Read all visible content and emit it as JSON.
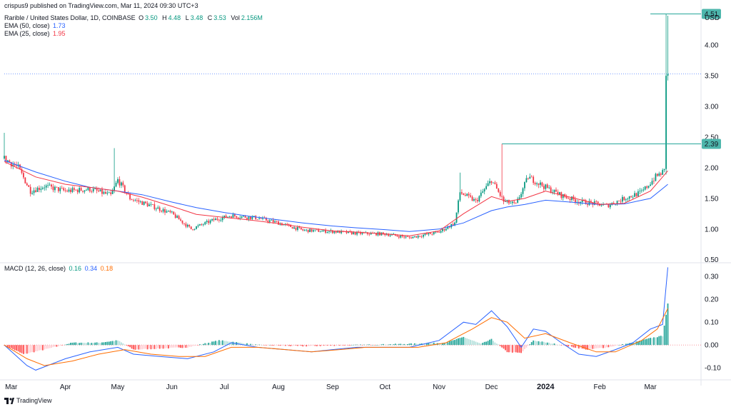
{
  "publisher_line": "crispus9 published on TradingView.com, Mar 11, 2024 09:30 UTC+3",
  "symbol_line": {
    "name": "Rarible / United States Dollar, 1D, COINBASE",
    "o_label": "O",
    "o": "3.50",
    "h_label": "H",
    "h": "4.48",
    "l_label": "L",
    "l": "3.48",
    "c_label": "C",
    "c": "3.53",
    "v_label": "Vol",
    "v": "2.156M"
  },
  "indicators": [
    {
      "label": "EMA (50, close)",
      "value": "1.73",
      "color": "#2962ff"
    },
    {
      "label": "EMA (25, close)",
      "value": "1.95",
      "color": "#f23645"
    }
  ],
  "macd_label": "MACD (12, 26, close)",
  "macd_values": [
    "0.16",
    "0.34",
    "0.18"
  ],
  "macd_value_colors": [
    "#089981",
    "#2962ff",
    "#ff6d00"
  ],
  "currency": "USD",
  "footer_brand": "TradingView",
  "colors": {
    "up": "#089981",
    "down": "#f23645",
    "ema50": "#2962ff",
    "ema25": "#f23645",
    "macd_line": "#2962ff",
    "signal_line": "#ff6d00",
    "level_line": "#26a69a",
    "badge": "#4db6ac"
  },
  "chart_data": [
    {
      "type": "candlestick",
      "title": "Rarible / United States Dollar, 1D, COINBASE",
      "ylabel": "USD",
      "ylim": [
        0.45,
        4.62
      ],
      "yticks": [
        "0.50",
        "1.00",
        "1.50",
        "2.00",
        "2.50",
        "3.00",
        "3.50",
        "4.00"
      ],
      "x_ticks": [
        "Mar",
        "Apr",
        "May",
        "Jun",
        "Jul",
        "Aug",
        "Sep",
        "Oct",
        "Nov",
        "Dec",
        "2024",
        "Feb",
        "Mar"
      ],
      "x_tick_dates": [
        "2023-03-01",
        "2023-04-01",
        "2023-05-01",
        "2023-06-01",
        "2023-07-01",
        "2023-08-01",
        "2023-09-01",
        "2023-10-01",
        "2023-11-01",
        "2023-12-01",
        "2024-01-01",
        "2024-02-01",
        "2024-03-01"
      ],
      "x_range": [
        "2023-02-25",
        "2024-03-30"
      ],
      "price_levels": [
        {
          "label": "4.51",
          "value": 4.51,
          "start_date": "2024-03-01"
        },
        {
          "label": "2.39",
          "value": 2.39,
          "start_date": "2023-12-07"
        }
      ],
      "current_price_line": 3.53,
      "series": [
        {
          "name": "EMA (50, close)",
          "date_values": [
            [
              "2023-02-25",
              2.12
            ],
            [
              "2023-03-15",
              1.93
            ],
            [
              "2023-04-01",
              1.78
            ],
            [
              "2023-04-15",
              1.68
            ],
            [
              "2023-05-01",
              1.62
            ],
            [
              "2023-05-15",
              1.56
            ],
            [
              "2023-06-01",
              1.44
            ],
            [
              "2023-06-15",
              1.35
            ],
            [
              "2023-07-01",
              1.27
            ],
            [
              "2023-07-15",
              1.21
            ],
            [
              "2023-08-01",
              1.15
            ],
            [
              "2023-08-15",
              1.1
            ],
            [
              "2023-09-01",
              1.05
            ],
            [
              "2023-09-15",
              1.02
            ],
            [
              "2023-10-01",
              0.99
            ],
            [
              "2023-10-15",
              0.96
            ],
            [
              "2023-11-01",
              1.0
            ],
            [
              "2023-11-15",
              1.1
            ],
            [
              "2023-12-01",
              1.3
            ],
            [
              "2023-12-10",
              1.36
            ],
            [
              "2023-12-20",
              1.4
            ],
            [
              "2024-01-01",
              1.47
            ],
            [
              "2024-01-15",
              1.44
            ],
            [
              "2024-02-01",
              1.4
            ],
            [
              "2024-02-15",
              1.41
            ],
            [
              "2024-03-01",
              1.5
            ],
            [
              "2024-03-08",
              1.66
            ],
            [
              "2024-03-11",
              1.73
            ]
          ]
        },
        {
          "name": "EMA (25, close)",
          "date_values": [
            [
              "2023-02-25",
              2.1
            ],
            [
              "2023-03-15",
              1.85
            ],
            [
              "2023-04-01",
              1.73
            ],
            [
              "2023-04-15",
              1.68
            ],
            [
              "2023-05-01",
              1.62
            ],
            [
              "2023-05-15",
              1.52
            ],
            [
              "2023-06-01",
              1.37
            ],
            [
              "2023-06-15",
              1.24
            ],
            [
              "2023-07-01",
              1.19
            ],
            [
              "2023-07-15",
              1.15
            ],
            [
              "2023-08-01",
              1.09
            ],
            [
              "2023-08-15",
              1.03
            ],
            [
              "2023-09-01",
              0.97
            ],
            [
              "2023-09-15",
              0.95
            ],
            [
              "2023-10-01",
              0.92
            ],
            [
              "2023-10-15",
              0.89
            ],
            [
              "2023-11-01",
              0.97
            ],
            [
              "2023-11-15",
              1.25
            ],
            [
              "2023-12-01",
              1.53
            ],
            [
              "2023-12-10",
              1.45
            ],
            [
              "2023-12-20",
              1.5
            ],
            [
              "2024-01-01",
              1.62
            ],
            [
              "2024-01-15",
              1.52
            ],
            [
              "2024-02-01",
              1.4
            ],
            [
              "2024-02-15",
              1.42
            ],
            [
              "2024-03-01",
              1.62
            ],
            [
              "2024-03-08",
              1.85
            ],
            [
              "2024-03-11",
              1.95
            ]
          ]
        }
      ],
      "price_path": [
        [
          "2023-02-25",
          2.15
        ],
        [
          "2023-03-05",
          2.0
        ],
        [
          "2023-03-12",
          1.62
        ],
        [
          "2023-03-20",
          1.7
        ],
        [
          "2023-04-01",
          1.62
        ],
        [
          "2023-04-15",
          1.65
        ],
        [
          "2023-04-27",
          1.55
        ],
        [
          "2023-05-01",
          1.8
        ],
        [
          "2023-05-08",
          1.5
        ],
        [
          "2023-05-20",
          1.38
        ],
        [
          "2023-06-01",
          1.25
        ],
        [
          "2023-06-12",
          1.0
        ],
        [
          "2023-06-25",
          1.15
        ],
        [
          "2023-07-05",
          1.22
        ],
        [
          "2023-07-20",
          1.18
        ],
        [
          "2023-08-01",
          1.1
        ],
        [
          "2023-08-15",
          0.98
        ],
        [
          "2023-09-01",
          0.96
        ],
        [
          "2023-09-15",
          0.93
        ],
        [
          "2023-10-01",
          0.92
        ],
        [
          "2023-10-15",
          0.86
        ],
        [
          "2023-11-01",
          0.95
        ],
        [
          "2023-11-10",
          1.1
        ],
        [
          "2023-11-13",
          1.6
        ],
        [
          "2023-11-22",
          1.45
        ],
        [
          "2023-12-01",
          1.8
        ],
        [
          "2023-12-08",
          1.45
        ],
        [
          "2023-12-15",
          1.4
        ],
        [
          "2023-12-22",
          1.85
        ],
        [
          "2024-01-01",
          1.68
        ],
        [
          "2024-01-10",
          1.55
        ],
        [
          "2024-01-20",
          1.45
        ],
        [
          "2024-01-28",
          1.42
        ],
        [
          "2024-02-05",
          1.38
        ],
        [
          "2024-02-15",
          1.5
        ],
        [
          "2024-02-25",
          1.6
        ],
        [
          "2024-03-04",
          1.85
        ],
        [
          "2024-03-09",
          1.95
        ],
        [
          "2024-03-10",
          3.5
        ],
        [
          "2024-03-11",
          3.53
        ]
      ],
      "wick_spikes": [
        [
          "2023-02-25",
          2.57
        ],
        [
          "2023-04-29",
          2.32
        ],
        [
          "2023-11-13",
          1.92
        ],
        [
          "2023-12-07",
          2.39
        ],
        [
          "2024-03-10",
          4.51
        ],
        [
          "2024-03-11",
          4.48
        ]
      ]
    },
    {
      "type": "macd",
      "title": "MACD (12, 26, close)",
      "ylim": [
        -0.14,
        0.36
      ],
      "yticks": [
        "-0.10",
        "0.00",
        "0.10",
        "0.20",
        "0.30"
      ],
      "series": [
        {
          "name": "MACD",
          "date_values": [
            [
              "2023-02-25",
              0.0
            ],
            [
              "2023-03-10",
              -0.09
            ],
            [
              "2023-03-15",
              -0.11
            ],
            [
              "2023-04-01",
              -0.06
            ],
            [
              "2023-04-15",
              -0.03
            ],
            [
              "2023-05-01",
              -0.01
            ],
            [
              "2023-05-10",
              -0.04
            ],
            [
              "2023-05-25",
              -0.05
            ],
            [
              "2023-06-10",
              -0.06
            ],
            [
              "2023-06-25",
              -0.03
            ],
            [
              "2023-07-05",
              0.01
            ],
            [
              "2023-07-20",
              -0.01
            ],
            [
              "2023-08-05",
              -0.02
            ],
            [
              "2023-08-20",
              -0.03
            ],
            [
              "2023-09-01",
              -0.02
            ],
            [
              "2023-09-15",
              -0.01
            ],
            [
              "2023-10-01",
              -0.01
            ],
            [
              "2023-10-15",
              -0.01
            ],
            [
              "2023-11-01",
              0.02
            ],
            [
              "2023-11-15",
              0.1
            ],
            [
              "2023-11-22",
              0.09
            ],
            [
              "2023-12-01",
              0.15
            ],
            [
              "2023-12-10",
              0.08
            ],
            [
              "2023-12-18",
              -0.01
            ],
            [
              "2023-12-25",
              0.07
            ],
            [
              "2024-01-01",
              0.06
            ],
            [
              "2024-01-10",
              0.01
            ],
            [
              "2024-01-20",
              -0.04
            ],
            [
              "2024-01-30",
              -0.05
            ],
            [
              "2024-02-10",
              -0.02
            ],
            [
              "2024-02-20",
              0.01
            ],
            [
              "2024-03-01",
              0.07
            ],
            [
              "2024-03-08",
              0.09
            ],
            [
              "2024-03-11",
              0.34
            ]
          ]
        },
        {
          "name": "Signal",
          "date_values": [
            [
              "2023-02-25",
              0.0
            ],
            [
              "2023-03-10",
              -0.06
            ],
            [
              "2023-03-20",
              -0.09
            ],
            [
              "2023-04-05",
              -0.07
            ],
            [
              "2023-04-20",
              -0.04
            ],
            [
              "2023-05-05",
              -0.02
            ],
            [
              "2023-05-20",
              -0.04
            ],
            [
              "2023-06-05",
              -0.05
            ],
            [
              "2023-06-20",
              -0.05
            ],
            [
              "2023-07-05",
              -0.01
            ],
            [
              "2023-07-20",
              -0.01
            ],
            [
              "2023-08-05",
              -0.02
            ],
            [
              "2023-08-20",
              -0.03
            ],
            [
              "2023-09-05",
              -0.02
            ],
            [
              "2023-09-20",
              -0.01
            ],
            [
              "2023-10-05",
              -0.01
            ],
            [
              "2023-10-20",
              -0.01
            ],
            [
              "2023-11-05",
              0.01
            ],
            [
              "2023-11-20",
              0.07
            ],
            [
              "2023-12-01",
              0.12
            ],
            [
              "2023-12-10",
              0.1
            ],
            [
              "2023-12-20",
              0.03
            ],
            [
              "2024-01-01",
              0.05
            ],
            [
              "2024-01-15",
              0.01
            ],
            [
              "2024-01-30",
              -0.03
            ],
            [
              "2024-02-10",
              -0.03
            ],
            [
              "2024-02-25",
              0.02
            ],
            [
              "2024-03-05",
              0.07
            ],
            [
              "2024-03-11",
              0.16
            ]
          ]
        }
      ],
      "histogram_path": [
        [
          "2023-02-25",
          0.0
        ],
        [
          "2023-03-08",
          -0.04
        ],
        [
          "2023-03-20",
          -0.02
        ],
        [
          "2023-04-05",
          0.01
        ],
        [
          "2023-04-20",
          0.01
        ],
        [
          "2023-05-01",
          0.02
        ],
        [
          "2023-05-10",
          -0.02
        ],
        [
          "2023-06-10",
          -0.01
        ],
        [
          "2023-06-28",
          0.02
        ],
        [
          "2023-07-05",
          0.015
        ],
        [
          "2023-07-20",
          0.0
        ],
        [
          "2023-08-15",
          -0.005
        ],
        [
          "2023-09-15",
          0.0
        ],
        [
          "2023-10-15",
          0.005
        ],
        [
          "2023-11-05",
          0.01
        ],
        [
          "2023-11-15",
          0.035
        ],
        [
          "2023-11-25",
          0.005
        ],
        [
          "2023-12-01",
          0.025
        ],
        [
          "2023-12-10",
          -0.03
        ],
        [
          "2023-12-18",
          -0.035
        ],
        [
          "2023-12-25",
          0.02
        ],
        [
          "2024-01-10",
          0.0
        ],
        [
          "2024-01-25",
          -0.02
        ],
        [
          "2024-02-05",
          -0.01
        ],
        [
          "2024-02-20",
          0.01
        ],
        [
          "2024-03-01",
          0.03
        ],
        [
          "2024-03-08",
          0.04
        ],
        [
          "2024-03-11",
          0.18
        ]
      ]
    }
  ]
}
